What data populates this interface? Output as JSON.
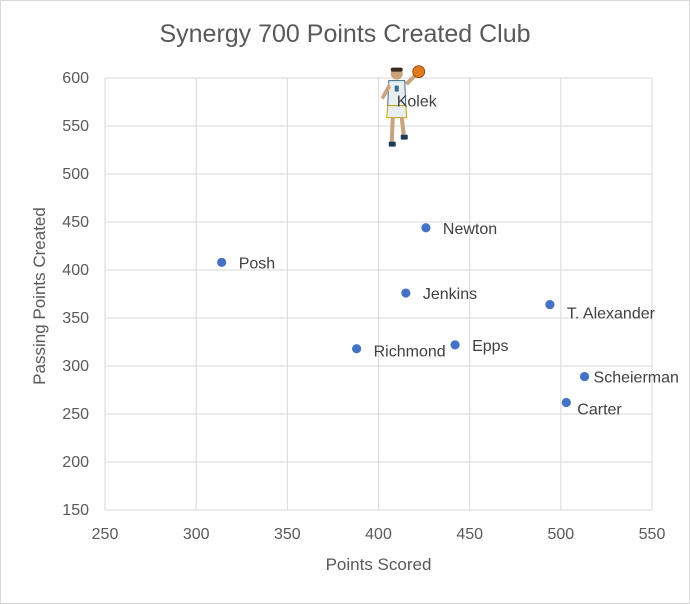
{
  "chart_data": {
    "type": "scatter",
    "title": "Synergy 700 Points Created Club",
    "xlabel": "Points Scored",
    "ylabel": "Passing Points Created",
    "xlim": [
      250,
      550
    ],
    "ylim": [
      150,
      600
    ],
    "xticks": [
      "250",
      "300",
      "350",
      "400",
      "450",
      "500",
      "550"
    ],
    "yticks": [
      "150",
      "200",
      "250",
      "300",
      "350",
      "400",
      "450",
      "500",
      "550",
      "600"
    ],
    "grid": true,
    "marker_color": "#4472c4",
    "points": [
      {
        "label": "Kolek",
        "x": 410,
        "y": 565,
        "marker": "player-photo-icon"
      },
      {
        "label": "Newton",
        "x": 426,
        "y": 444
      },
      {
        "label": "Posh",
        "x": 314,
        "y": 408
      },
      {
        "label": "Jenkins",
        "x": 415,
        "y": 376
      },
      {
        "label": "T. Alexander",
        "x": 494,
        "y": 364
      },
      {
        "label": "Richmond",
        "x": 388,
        "y": 318
      },
      {
        "label": "Epps",
        "x": 442,
        "y": 322
      },
      {
        "label": "Scheierman",
        "x": 513,
        "y": 289
      },
      {
        "label": "Carter",
        "x": 503,
        "y": 262
      }
    ]
  }
}
